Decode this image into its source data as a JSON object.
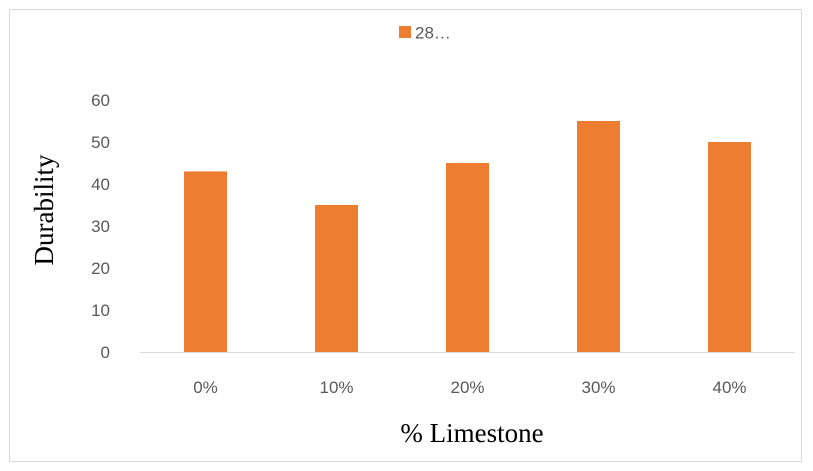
{
  "chart_data": {
    "type": "bar",
    "categories": [
      "0%",
      "10%",
      "20%",
      "30%",
      "40%"
    ],
    "series": [
      {
        "name": "28…",
        "values": [
          43,
          35,
          45,
          55,
          50
        ],
        "color": "#ed7d31"
      }
    ],
    "title": "",
    "xlabel": "% Limestone",
    "ylabel": "Durability",
    "ylim": [
      0,
      60
    ],
    "yticks": [
      0,
      10,
      20,
      30,
      40,
      50,
      60
    ],
    "grid": false,
    "legend_position": "top-center"
  }
}
